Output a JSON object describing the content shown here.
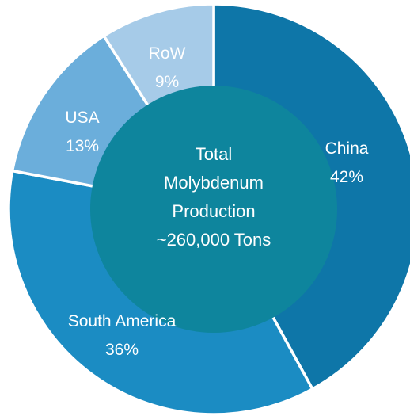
{
  "chart_data": {
    "type": "pie",
    "categories": [
      "China",
      "South America",
      "USA",
      "RoW"
    ],
    "values": [
      42,
      36,
      13,
      9
    ],
    "value_labels": [
      "42%",
      "36%",
      "13%",
      "9%"
    ],
    "colors": [
      "#0E76A8",
      "#1B8CC3",
      "#6BAEDB",
      "#A6CBE8"
    ],
    "center_color": "#0E859D",
    "center_label": [
      "Total",
      "Molybdenum",
      "Production",
      "~260,000 Tons"
    ],
    "legend": "none"
  }
}
